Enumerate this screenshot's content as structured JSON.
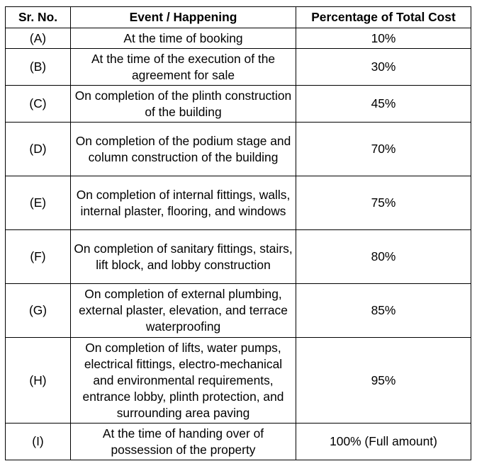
{
  "table": {
    "headers": [
      "Sr. No.",
      "Event / Happening",
      "Percentage of Total Cost"
    ],
    "rows": [
      {
        "sr": "(A)",
        "event": "At the time of booking",
        "percentage": "10%"
      },
      {
        "sr": "(B)",
        "event": "At the time of the execution of the agreement for sale",
        "percentage": "30%"
      },
      {
        "sr": "(C)",
        "event": "On completion of the plinth construction of the building",
        "percentage": "45%"
      },
      {
        "sr": "(D)",
        "event": "On completion of the podium stage and column construction of the building",
        "percentage": "70%"
      },
      {
        "sr": "(E)",
        "event": "On completion of internal fittings, walls, internal plaster, flooring, and windows",
        "percentage": "75%"
      },
      {
        "sr": "(F)",
        "event": "On completion of sanitary fittings, stairs, lift block, and lobby construction",
        "percentage": "80%"
      },
      {
        "sr": "(G)",
        "event": "On completion of external plumbing, external plaster, elevation, and terrace waterproofing",
        "percentage": "85%"
      },
      {
        "sr": "(H)",
        "event": "On completion of lifts, water pumps, electrical fittings, electro-mechanical and environmental requirements, entrance lobby, plinth protection, and surrounding area paving",
        "percentage": "95%"
      },
      {
        "sr": "(I)",
        "event": "At the time of handing over of possession of the property",
        "percentage": "100% (Full amount)"
      }
    ]
  }
}
